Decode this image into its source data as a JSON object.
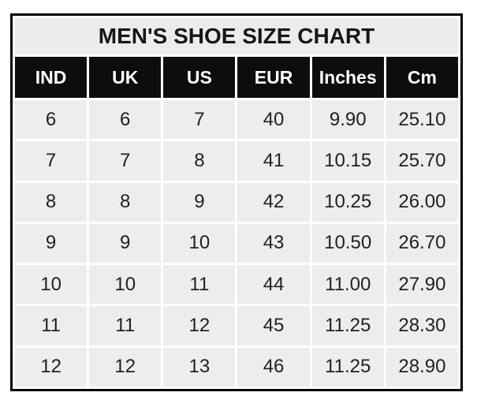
{
  "chart_data": {
    "type": "table",
    "title": "MEN'S SHOE SIZE CHART",
    "columns": [
      "IND",
      "UK",
      "US",
      "EUR",
      "Inches",
      "Cm"
    ],
    "rows": [
      [
        "6",
        "6",
        "7",
        "40",
        "9.90",
        "25.10"
      ],
      [
        "7",
        "7",
        "8",
        "41",
        "10.15",
        "25.70"
      ],
      [
        "8",
        "8",
        "9",
        "42",
        "10.25",
        "26.00"
      ],
      [
        "9",
        "9",
        "10",
        "43",
        "10.50",
        "26.70"
      ],
      [
        "10",
        "10",
        "11",
        "44",
        "11.00",
        "27.90"
      ],
      [
        "11",
        "11",
        "12",
        "45",
        "11.25",
        "28.30"
      ],
      [
        "12",
        "12",
        "13",
        "46",
        "11.25",
        "28.90"
      ]
    ],
    "layout": {
      "grid": "white 3px gaps between cells",
      "legend": "none"
    }
  },
  "colors": {
    "outer_border": "#000000",
    "title_bg": "#ececec",
    "header_bg": "#0d0d0d",
    "header_text": "#ffffff",
    "cell_bg": "#ededed",
    "cell_text": "#212121",
    "gap": "#ffffff",
    "page_bg": "#ffffff"
  }
}
